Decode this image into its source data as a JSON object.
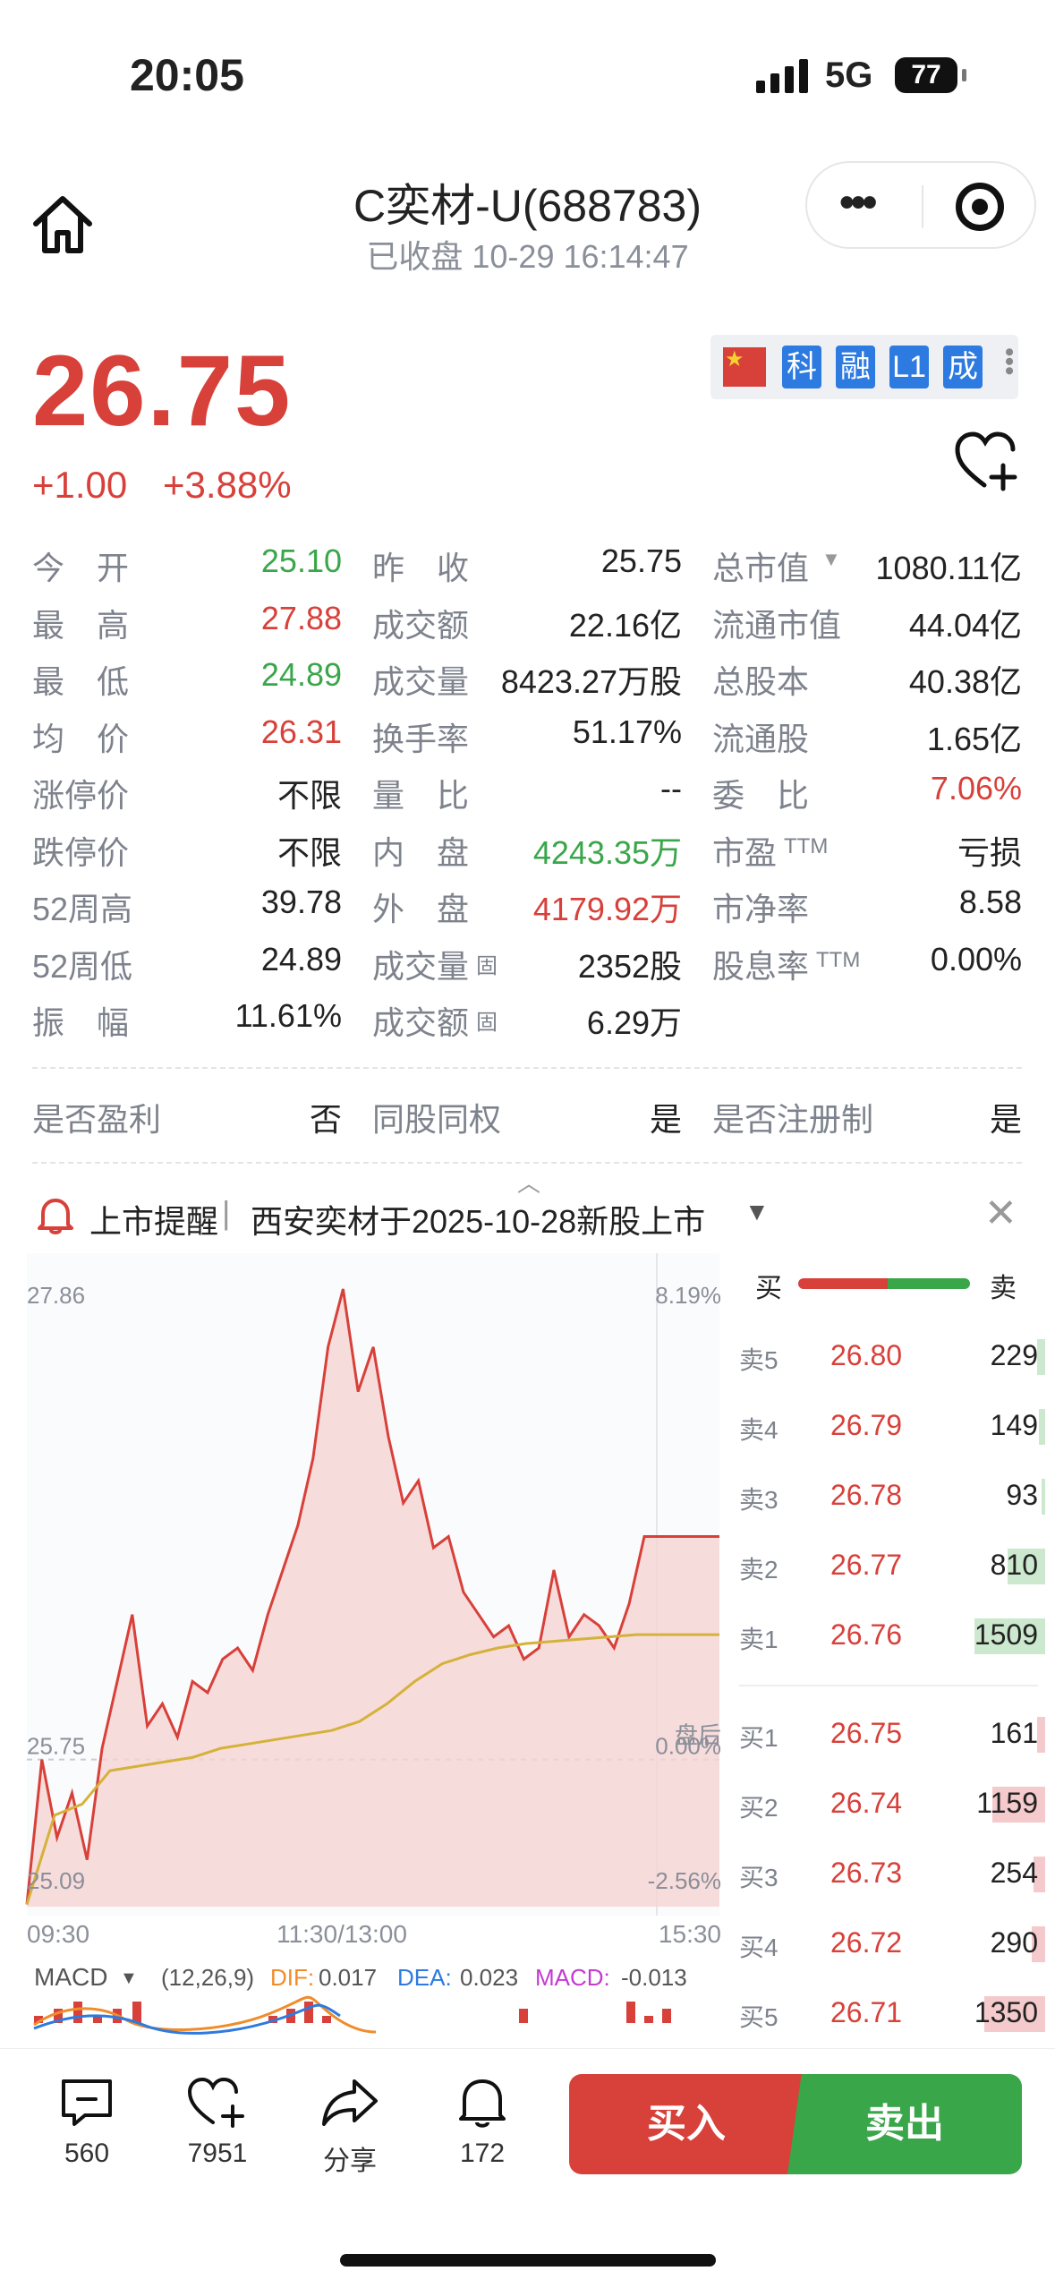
{
  "status_bar": {
    "time": "20:05",
    "network": "5G",
    "battery": "77"
  },
  "header": {
    "title": "C奕材-U(688783)",
    "subtitle": "已收盘  10-29 16:14:47"
  },
  "quote": {
    "price": "26.75",
    "change": "+1.00",
    "change_pct": "+3.88%"
  },
  "badges": [
    "科",
    "融",
    "L1",
    "成"
  ],
  "stats": [
    [
      {
        "label": "今　开",
        "value": "25.10",
        "color": "green"
      },
      {
        "label": "昨　收",
        "value": "25.75",
        "color": "dark"
      },
      {
        "label": "总市值",
        "value": "1080.11亿",
        "color": "dark",
        "dropdown": true
      }
    ],
    [
      {
        "label": "最　高",
        "value": "27.88",
        "color": "red"
      },
      {
        "label": "成交额",
        "value": "22.16亿",
        "color": "dark"
      },
      {
        "label": "流通市值",
        "value": "44.04亿",
        "color": "dark"
      }
    ],
    [
      {
        "label": "最　低",
        "value": "24.89",
        "color": "green"
      },
      {
        "label": "成交量",
        "value": "8423.27万股",
        "color": "dark"
      },
      {
        "label": "总股本",
        "value": "40.38亿",
        "color": "dark"
      }
    ],
    [
      {
        "label": "均　价",
        "value": "26.31",
        "color": "red"
      },
      {
        "label": "换手率",
        "value": "51.17%",
        "color": "dark"
      },
      {
        "label": "流通股",
        "value": "1.65亿",
        "color": "dark"
      }
    ],
    [
      {
        "label": "涨停价",
        "value": "不限",
        "color": "dark"
      },
      {
        "label": "量　比",
        "value": "--",
        "color": "dark"
      },
      {
        "label": "委　比",
        "value": "7.06%",
        "color": "red"
      }
    ],
    [
      {
        "label": "跌停价",
        "value": "不限",
        "color": "dark"
      },
      {
        "label": "内　盘",
        "value": "4243.35万",
        "color": "green"
      },
      {
        "label": "市盈",
        "ttm": "TTM",
        "value": "亏损",
        "color": "dark"
      }
    ],
    [
      {
        "label": "52周高",
        "value": "39.78",
        "color": "dark"
      },
      {
        "label": "外　盘",
        "value": "4179.92万",
        "color": "red"
      },
      {
        "label": "市净率",
        "value": "8.58",
        "color": "dark"
      }
    ],
    [
      {
        "label": "52周低",
        "value": "24.89",
        "color": "dark"
      },
      {
        "label": "成交量",
        "sub": "固",
        "value": "2352股",
        "color": "dark"
      },
      {
        "label": "股息率",
        "ttm": "TTM",
        "value": "0.00%",
        "color": "dark"
      }
    ],
    [
      {
        "label": "振　幅",
        "value": "11.61%",
        "color": "dark"
      },
      {
        "label": "成交额",
        "sub": "固",
        "value": "6.29万",
        "color": "dark"
      },
      null
    ]
  ],
  "flags": [
    {
      "label": "是否盈利",
      "value": "否"
    },
    {
      "label": "同股同权",
      "value": "是"
    },
    {
      "label": "是否注册制",
      "value": "是"
    }
  ],
  "notice": {
    "title": "上市提醒",
    "text": "西安奕材于2025-10-28新股上市"
  },
  "chart": {
    "price_high": "27.86",
    "pct_high": "8.19%",
    "price_mid": "25.75",
    "pct_mid": "0.00%",
    "price_low": "25.09",
    "pct_low": "-2.56%",
    "after_hours": "盘后",
    "time_start": "09:30",
    "time_mid": "11:30/13:00",
    "time_end": "15:30",
    "macd_label": "MACD",
    "macd_params": "(12,26,9)",
    "dif_label": "DIF:",
    "dif_value": "0.017",
    "dea_label": "DEA:",
    "dea_value": "0.023",
    "macd_val_label": "MACD:",
    "macd_value": "-0.013"
  },
  "chart_data": {
    "type": "line",
    "ylim": [
      25.09,
      27.86
    ],
    "series": [
      {
        "values": [
          25.1,
          25.75,
          25.4,
          25.6,
          25.3,
          25.8,
          26.1,
          26.4,
          25.9,
          26.0,
          25.85,
          26.1,
          26.05,
          26.2,
          26.25,
          26.15,
          26.4,
          26.6,
          26.8,
          27.1,
          27.6,
          27.86,
          27.4,
          27.6,
          27.2,
          26.9,
          27.0,
          26.7,
          26.75,
          26.5,
          26.4,
          26.3,
          26.35,
          26.2,
          26.25,
          26.6,
          26.3,
          26.4,
          26.35,
          26.25,
          26.45,
          26.75,
          26.75
        ]
      },
      {
        "values": [
          25.1,
          25.5,
          25.55,
          25.7,
          25.72,
          25.74,
          25.76,
          25.8,
          25.82,
          25.84,
          25.86,
          25.88,
          25.92,
          26.0,
          26.1,
          26.18,
          26.22,
          26.25,
          26.27,
          26.28,
          26.29,
          26.3,
          26.31,
          26.31,
          26.31,
          26.31
        ]
      }
    ]
  },
  "orderbook": {
    "bid_label": "买",
    "ask_label": "卖",
    "asks": [
      {
        "label": "卖5",
        "price": "26.80",
        "volume": "229",
        "bar": 0.04
      },
      {
        "label": "卖4",
        "price": "26.79",
        "volume": "149",
        "bar": 0.03
      },
      {
        "label": "卖3",
        "price": "26.78",
        "volume": "93",
        "bar": 0.02
      },
      {
        "label": "卖2",
        "price": "26.77",
        "volume": "810",
        "bar": 0.19
      },
      {
        "label": "卖1",
        "price": "26.76",
        "volume": "1509",
        "bar": 0.36
      }
    ],
    "bids": [
      {
        "label": "买1",
        "price": "26.75",
        "volume": "161",
        "bar": 0.04
      },
      {
        "label": "买2",
        "price": "26.74",
        "volume": "1159",
        "bar": 0.27
      },
      {
        "label": "买3",
        "price": "26.73",
        "volume": "254",
        "bar": 0.06
      },
      {
        "label": "买4",
        "price": "26.72",
        "volume": "290",
        "bar": 0.07
      },
      {
        "label": "买5",
        "price": "26.71",
        "volume": "1350",
        "bar": 0.31
      }
    ]
  },
  "tabbar": {
    "comments": "560",
    "favorites": "7951",
    "share": "分享",
    "alerts": "172",
    "buy": "买入",
    "sell": "卖出"
  },
  "colors": {
    "red": "#d8403a",
    "green": "#3aa64a",
    "blue": "#2d7ae0"
  }
}
